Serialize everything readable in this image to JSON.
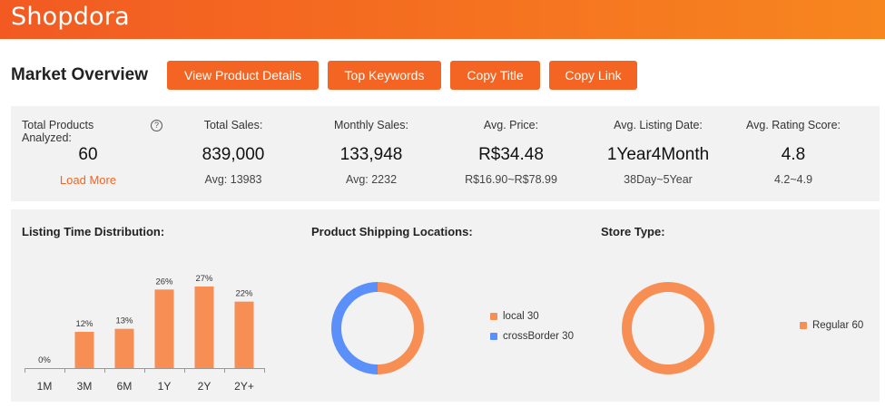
{
  "header": {
    "logo": "Shopdora"
  },
  "page": {
    "title": "Market Overview"
  },
  "toolbar": {
    "view_details": "View Product Details",
    "top_keywords": "Top Keywords",
    "copy_title": "Copy Title",
    "copy_link": "Copy Link"
  },
  "stats": {
    "total_products_label": "Total Products Analyzed:",
    "total_products_value": "60",
    "load_more": "Load More",
    "help": "?",
    "total_sales_label": "Total Sales:",
    "total_sales_value": "839,000",
    "total_sales_avg": "Avg: 13983",
    "monthly_sales_label": "Monthly Sales:",
    "monthly_sales_value": "133,948",
    "monthly_sales_avg": "Avg: 2232",
    "avg_price_label": "Avg. Price:",
    "avg_price_value": "R$34.48",
    "avg_price_range": "R$16.90~R$78.99",
    "avg_listing_label": "Avg. Listing Date:",
    "avg_listing_value": "1Year4Month",
    "avg_listing_range": "38Day~5Year",
    "avg_rating_label": "Avg. Rating Score:",
    "avg_rating_value": "4.8",
    "avg_rating_range": "4.2~4.9"
  },
  "sections": {
    "listing_time": "Listing Time Distribution:",
    "shipping": "Product Shipping Locations:",
    "store_type": "Store Type:"
  },
  "colors": {
    "accent": "#f46423",
    "bar": "#f78f55",
    "blue": "#5b8ff9",
    "panel": "#f2f2f2"
  },
  "chart_data": [
    {
      "type": "bar",
      "title": "Listing Time Distribution:",
      "categories": [
        "1M",
        "3M",
        "6M",
        "1Y",
        "2Y",
        "2Y+"
      ],
      "values": [
        0,
        12,
        13,
        26,
        27,
        22
      ],
      "labels": [
        "0%",
        "12%",
        "13%",
        "26%",
        "27%",
        "22%"
      ],
      "unit": "%"
    },
    {
      "type": "pie",
      "title": "Product Shipping Locations:",
      "series": [
        {
          "name": "local",
          "value": 30,
          "color": "#f78f55"
        },
        {
          "name": "crossBorder",
          "value": 30,
          "color": "#5b8ff9"
        }
      ],
      "legend_labels": [
        "local 30",
        "crossBorder 30"
      ],
      "donut": true
    },
    {
      "type": "pie",
      "title": "Store Type:",
      "series": [
        {
          "name": "Regular",
          "value": 60,
          "color": "#f78f55"
        }
      ],
      "legend_labels": [
        "Regular 60"
      ],
      "donut": true
    }
  ]
}
